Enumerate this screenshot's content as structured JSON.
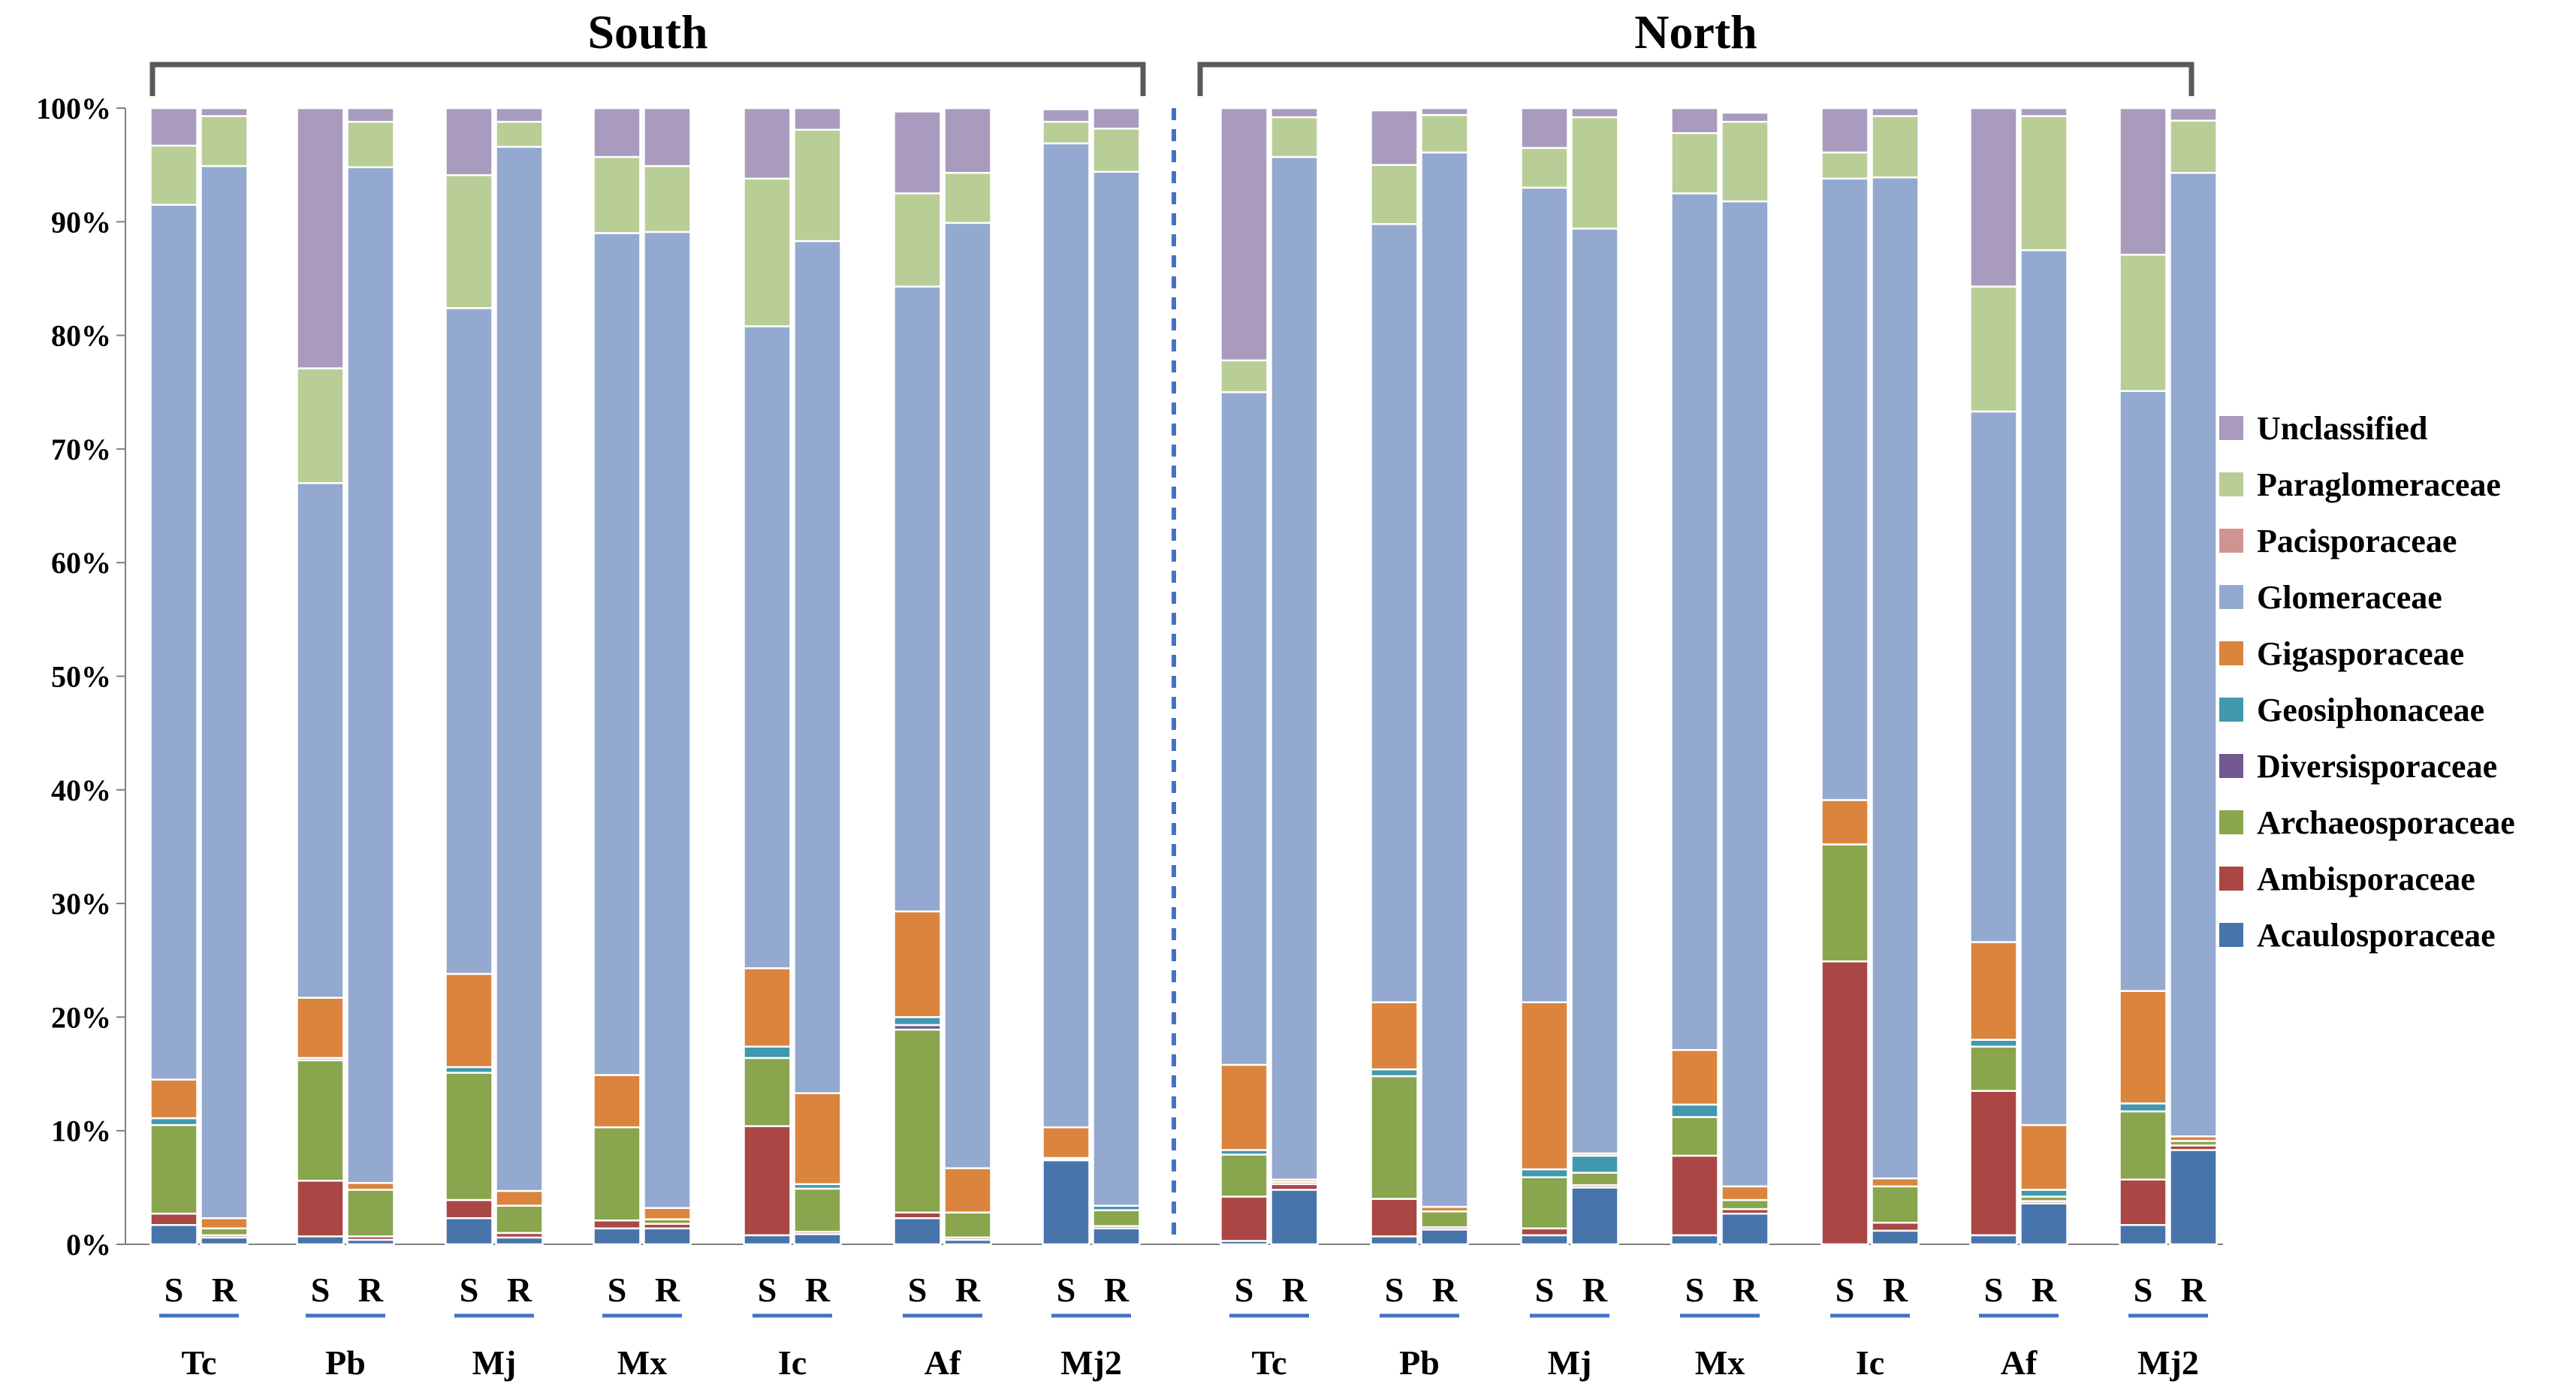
{
  "chart_data": {
    "type": "bar",
    "stacked": true,
    "percent": true,
    "ylim": [
      0,
      100
    ],
    "yticks": [
      "0%",
      "10%",
      "20%",
      "30%",
      "40%",
      "50%",
      "60%",
      "70%",
      "80%",
      "90%",
      "100%"
    ],
    "regions": [
      {
        "label": "South",
        "groups": [
          0,
          1,
          2,
          3,
          4,
          5,
          6
        ]
      },
      {
        "label": "North",
        "groups": [
          7,
          8,
          9,
          10,
          11,
          12,
          13
        ]
      }
    ],
    "groups": [
      "Tc",
      "Pb",
      "Mj",
      "Mx",
      "Ic",
      "Af",
      "Mj2",
      "Tc",
      "Pb",
      "Mj",
      "Mx",
      "Ic",
      "Af",
      "Mj2"
    ],
    "bar_labels": [
      "S",
      "R"
    ],
    "colors": {
      "Acaulosporaceae": "#4774AA",
      "Ambisporaceae": "#AA4744",
      "Archaeosporaceae": "#89A54E",
      "Diversisporaceae": "#71588F",
      "Geosiphonaceae": "#4198AF",
      "Gigasporaceae": "#DB843D",
      "Glomeraceae": "#93A9CF",
      "Pacisporaceae": "#D19392",
      "Paraglomeraceae": "#B9CD96",
      "Unclassified": "#A99BBD"
    },
    "legend": [
      "Unclassified",
      "Paraglomeraceae",
      "Pacisporaceae",
      "Glomeraceae",
      "Gigasporaceae",
      "Geosiphonaceae",
      "Diversisporaceae",
      "Archaeosporaceae",
      "Ambisporaceae",
      "Acaulosporaceae"
    ],
    "series": [
      {
        "name": "Acaulosporaceae",
        "values": [
          1.7,
          0.6,
          0.7,
          0.4,
          2.3,
          0.6,
          1.4,
          1.4,
          0.8,
          0.9,
          2.3,
          0.4,
          7.4,
          1.4,
          0.3,
          4.8,
          0.7,
          1.3,
          0.8,
          5.0,
          0.8,
          2.7,
          0.0,
          1.2,
          0.8,
          3.6,
          1.7,
          8.3
        ]
      },
      {
        "name": "Ambisporaceae",
        "values": [
          1.0,
          0.2,
          4.9,
          0.3,
          1.6,
          0.4,
          0.7,
          0.4,
          9.6,
          0.2,
          0.5,
          0.2,
          0.1,
          0.2,
          3.9,
          0.5,
          3.3,
          0.2,
          0.6,
          0.2,
          7.0,
          0.4,
          24.9,
          0.7,
          12.7,
          0.2,
          4.0,
          0.4
        ]
      },
      {
        "name": "Archaeosporaceae",
        "values": [
          7.8,
          0.6,
          10.6,
          4.1,
          11.2,
          2.4,
          8.2,
          0.4,
          6.0,
          3.8,
          16.1,
          2.2,
          0.0,
          1.4,
          3.7,
          0.2,
          10.8,
          1.4,
          4.5,
          1.1,
          3.4,
          0.8,
          10.3,
          3.2,
          3.9,
          0.4,
          6.0,
          0.4
        ]
      },
      {
        "name": "Diversisporaceae",
        "values": [
          0.0,
          0.0,
          0.0,
          0.0,
          0.0,
          0.0,
          0.0,
          0.0,
          0.0,
          0.0,
          0.4,
          0.0,
          0.1,
          0.0,
          0.0,
          0.0,
          0.0,
          0.0,
          0.0,
          0.0,
          0.0,
          0.0,
          0.0,
          0.0,
          0.0,
          0.0,
          0.0,
          0.0
        ]
      },
      {
        "name": "Geosiphonaceae",
        "values": [
          0.6,
          0.0,
          0.2,
          0.0,
          0.5,
          0.0,
          0.0,
          0.0,
          1.0,
          0.4,
          0.7,
          0.0,
          0.0,
          0.4,
          0.4,
          0.0,
          0.6,
          0.0,
          0.7,
          1.5,
          1.1,
          0.0,
          0.0,
          0.0,
          0.6,
          0.6,
          0.7,
          0.0
        ]
      },
      {
        "name": "Gigasporaceae",
        "values": [
          3.4,
          0.9,
          5.3,
          0.6,
          8.2,
          1.3,
          4.6,
          1.0,
          6.9,
          8.0,
          9.3,
          3.9,
          2.7,
          0.0,
          7.5,
          0.2,
          5.9,
          0.4,
          14.7,
          0.2,
          4.8,
          1.2,
          3.9,
          0.7,
          8.6,
          5.7,
          9.9,
          0.4
        ]
      },
      {
        "name": "Glomeraceae",
        "values": [
          77.0,
          92.6,
          45.3,
          89.4,
          58.6,
          91.9,
          74.1,
          85.9,
          56.5,
          75.0,
          55.0,
          83.2,
          86.6,
          91.0,
          59.2,
          90.0,
          68.5,
          92.8,
          71.7,
          81.4,
          75.4,
          86.7,
          54.7,
          88.1,
          46.7,
          77.0,
          52.8,
          84.8
        ]
      },
      {
        "name": "Pacisporaceae",
        "values": [
          0.0,
          0.0,
          0.0,
          0.0,
          0.0,
          0.0,
          0.0,
          0.0,
          0.0,
          0.0,
          0.0,
          0.0,
          0.0,
          0.0,
          0.0,
          0.0,
          0.0,
          0.0,
          0.0,
          0.0,
          0.0,
          0.0,
          0.0,
          0.0,
          0.0,
          0.0,
          0.0,
          0.0
        ]
      },
      {
        "name": "Paraglomeraceae",
        "values": [
          5.2,
          4.4,
          10.1,
          4.0,
          11.7,
          2.2,
          6.7,
          5.8,
          13.0,
          9.8,
          8.2,
          4.4,
          1.9,
          3.8,
          2.8,
          3.5,
          5.2,
          3.3,
          3.5,
          9.8,
          5.3,
          7.0,
          2.3,
          5.4,
          11.0,
          11.8,
          12.0,
          4.6
        ]
      },
      {
        "name": "Unclassified",
        "values": [
          3.3,
          0.7,
          22.9,
          1.2,
          5.9,
          1.2,
          4.3,
          5.1,
          6.2,
          1.9,
          7.2,
          5.7,
          1.1,
          1.8,
          22.2,
          0.8,
          4.8,
          0.6,
          3.5,
          0.8,
          2.2,
          0.8,
          3.9,
          0.7,
          15.7,
          0.7,
          12.9,
          1.1
        ]
      }
    ]
  }
}
